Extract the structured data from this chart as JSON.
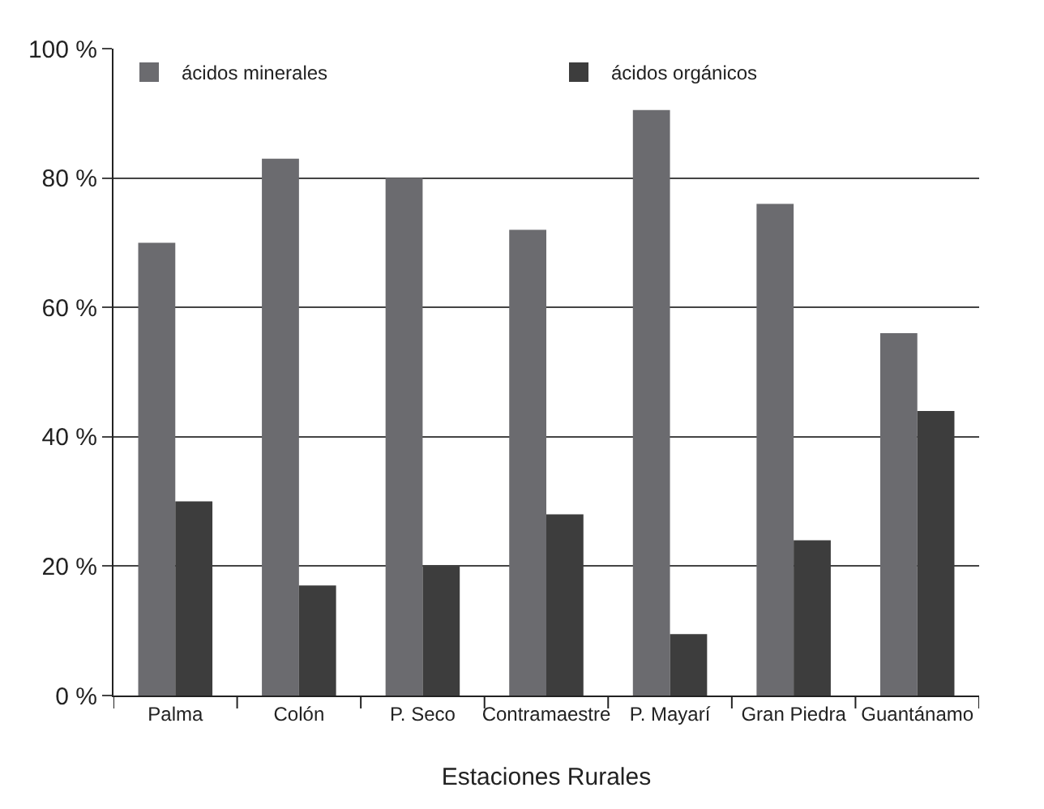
{
  "chart_data": {
    "type": "bar",
    "xlabel": "Estaciones Rurales",
    "categories": [
      "Palma",
      "Colón",
      "P. Seco",
      "Contramaestre",
      "P. Mayarí",
      "Gran Piedra",
      "Guantánamo"
    ],
    "series": [
      {
        "name": "ácidos minerales",
        "color": "#6b6b6f",
        "values": [
          70,
          83,
          80,
          72,
          90.5,
          76,
          56
        ]
      },
      {
        "name": "ácidos orgánicos",
        "color": "#3d3d3d",
        "values": [
          30,
          17,
          20,
          28,
          9.5,
          24,
          44
        ]
      }
    ],
    "ylim": [
      0,
      100
    ],
    "yticks": [
      {
        "value": 0,
        "label": "0 %"
      },
      {
        "value": 20,
        "label": "20 %"
      },
      {
        "value": 40,
        "label": "40 %"
      },
      {
        "value": 60,
        "label": "60 %"
      },
      {
        "value": 80,
        "label": "80 %"
      },
      {
        "value": 100,
        "label": "100 %"
      }
    ],
    "grid": "y",
    "legend": "top"
  }
}
